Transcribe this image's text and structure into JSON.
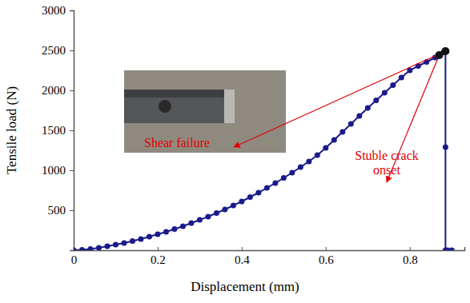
{
  "chart_data": {
    "type": "line",
    "x_label": "Displacement (mm)",
    "y_label": "Tensile load (N)",
    "xlim": [
      0,
      0.93
    ],
    "xticks": [
      0,
      0.2,
      0.4,
      0.6,
      0.8
    ],
    "ylim": [
      0,
      3000
    ],
    "yticks": [
      500,
      1000,
      1500,
      2000,
      2500,
      3000
    ],
    "series": [
      {
        "name": "Tensile load",
        "color": "#1a1a8c",
        "marker": "circle",
        "line_style": "solid",
        "x": [
          0,
          0.02,
          0.04,
          0.06,
          0.08,
          0.1,
          0.12,
          0.14,
          0.16,
          0.18,
          0.2,
          0.22,
          0.24,
          0.26,
          0.28,
          0.3,
          0.32,
          0.34,
          0.36,
          0.38,
          0.4,
          0.42,
          0.44,
          0.46,
          0.48,
          0.5,
          0.52,
          0.54,
          0.56,
          0.58,
          0.6,
          0.62,
          0.64,
          0.66,
          0.68,
          0.7,
          0.72,
          0.74,
          0.76,
          0.78,
          0.8,
          0.82,
          0.84,
          0.86,
          0.87,
          0.88,
          0.885,
          0.885,
          0.885,
          0.89,
          0.9
        ],
        "values": [
          0,
          5,
          15,
          30,
          50,
          70,
          90,
          115,
          140,
          170,
          200,
          230,
          265,
          300,
          340,
          380,
          420,
          465,
          510,
          560,
          610,
          665,
          720,
          780,
          840,
          905,
          970,
          1040,
          1110,
          1190,
          1280,
          1380,
          1480,
          1580,
          1680,
          1780,
          1875,
          1970,
          2065,
          2160,
          2250,
          2305,
          2355,
          2410,
          2440,
          2475,
          2490,
          1290,
          0,
          0,
          0
        ]
      }
    ],
    "annotations": [
      {
        "text": "Shear failure",
        "x": 0.885,
        "y": 2490
      },
      {
        "text": "Stuble crack onset",
        "x": 0.87,
        "y": 2440
      }
    ]
  }
}
